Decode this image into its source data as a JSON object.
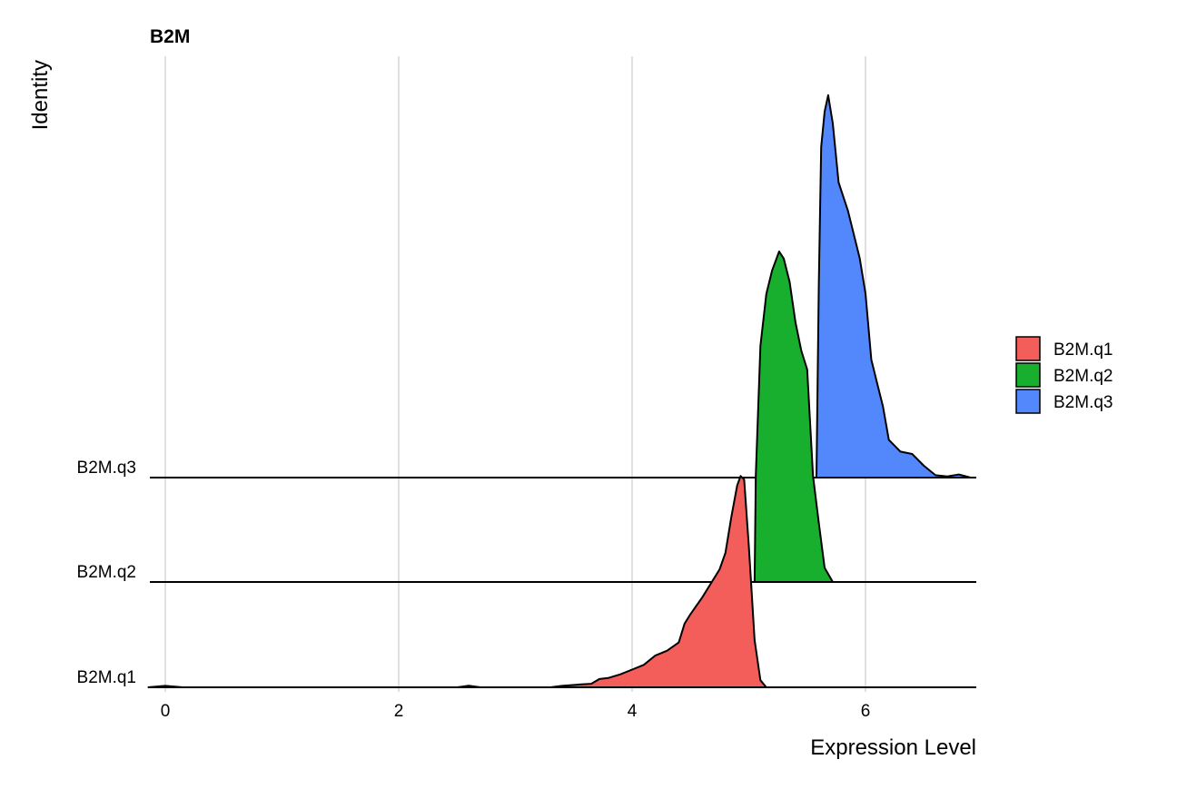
{
  "chart_data": {
    "type": "ridgeline",
    "title": "B2M",
    "xlabel": "Expression Level",
    "ylabel": "Identity",
    "xlim": [
      -0.15,
      6.9
    ],
    "x_ticks": [
      0,
      2,
      4,
      6
    ],
    "grid": "vertical",
    "legend_position": "right",
    "series": [
      {
        "name": "B2M.q1",
        "color": "#F8766D",
        "fill": "#F35E5A",
        "density": [
          [
            -0.15,
            0.0
          ],
          [
            0.0,
            0.006
          ],
          [
            0.15,
            0.0
          ],
          [
            2.5,
            0.0
          ],
          [
            2.6,
            0.007
          ],
          [
            2.7,
            0.0
          ],
          [
            3.3,
            0.0
          ],
          [
            3.4,
            0.006
          ],
          [
            3.55,
            0.012
          ],
          [
            3.65,
            0.015
          ],
          [
            3.72,
            0.035
          ],
          [
            3.8,
            0.04
          ],
          [
            3.9,
            0.055
          ],
          [
            4.0,
            0.075
          ],
          [
            4.1,
            0.095
          ],
          [
            4.2,
            0.135
          ],
          [
            4.3,
            0.155
          ],
          [
            4.4,
            0.19
          ],
          [
            4.45,
            0.27
          ],
          [
            4.5,
            0.31
          ],
          [
            4.6,
            0.38
          ],
          [
            4.7,
            0.46
          ],
          [
            4.75,
            0.5
          ],
          [
            4.8,
            0.57
          ],
          [
            4.85,
            0.72
          ],
          [
            4.9,
            0.855
          ],
          [
            4.93,
            0.895
          ],
          [
            4.96,
            0.88
          ],
          [
            5.0,
            0.6
          ],
          [
            5.05,
            0.2
          ],
          [
            5.1,
            0.03
          ],
          [
            5.15,
            0.0
          ],
          [
            6.9,
            0.0
          ]
        ]
      },
      {
        "name": "B2M.q2",
        "color": "#00BA38",
        "fill": "#19AF2E",
        "density": [
          [
            5.05,
            0.0
          ],
          [
            5.06,
            0.45
          ],
          [
            5.1,
            1.0
          ],
          [
            5.15,
            1.22
          ],
          [
            5.2,
            1.32
          ],
          [
            5.26,
            1.4
          ],
          [
            5.3,
            1.37
          ],
          [
            5.35,
            1.27
          ],
          [
            5.4,
            1.1
          ],
          [
            5.45,
            0.98
          ],
          [
            5.5,
            0.9
          ],
          [
            5.55,
            0.45
          ],
          [
            5.6,
            0.25
          ],
          [
            5.65,
            0.06
          ],
          [
            5.72,
            0.0
          ]
        ]
      },
      {
        "name": "B2M.q3",
        "color": "#619CFF",
        "fill": "#5288FC",
        "density": [
          [
            5.58,
            0.0
          ],
          [
            5.6,
            0.82
          ],
          [
            5.62,
            1.4
          ],
          [
            5.65,
            1.55
          ],
          [
            5.68,
            1.62
          ],
          [
            5.72,
            1.5
          ],
          [
            5.77,
            1.25
          ],
          [
            5.85,
            1.13
          ],
          [
            5.95,
            0.93
          ],
          [
            6.0,
            0.78
          ],
          [
            6.05,
            0.5
          ],
          [
            6.1,
            0.4
          ],
          [
            6.15,
            0.3
          ],
          [
            6.2,
            0.16
          ],
          [
            6.3,
            0.11
          ],
          [
            6.4,
            0.1
          ],
          [
            6.5,
            0.05
          ],
          [
            6.6,
            0.01
          ],
          [
            6.7,
            0.005
          ],
          [
            6.8,
            0.013
          ],
          [
            6.9,
            0.0
          ]
        ]
      }
    ]
  }
}
